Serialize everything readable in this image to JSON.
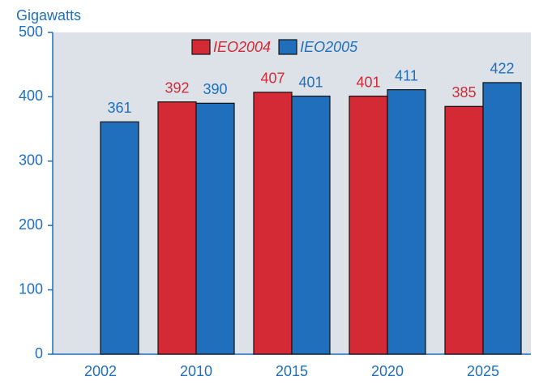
{
  "chart_data": {
    "type": "bar",
    "y_label": "Gigawatts",
    "categories": [
      "2002",
      "2010",
      "2015",
      "2020",
      "2025"
    ],
    "series": [
      {
        "name": "IEO2004",
        "color": "#d42a36",
        "values": [
          null,
          392,
          407,
          401,
          385
        ]
      },
      {
        "name": "IEO2005",
        "color": "#1f6fbc",
        "values": [
          361,
          390,
          401,
          411,
          422
        ]
      }
    ],
    "ylim": [
      0,
      500
    ],
    "yticks": [
      0,
      100,
      200,
      300,
      400,
      500
    ],
    "legend": "top"
  }
}
